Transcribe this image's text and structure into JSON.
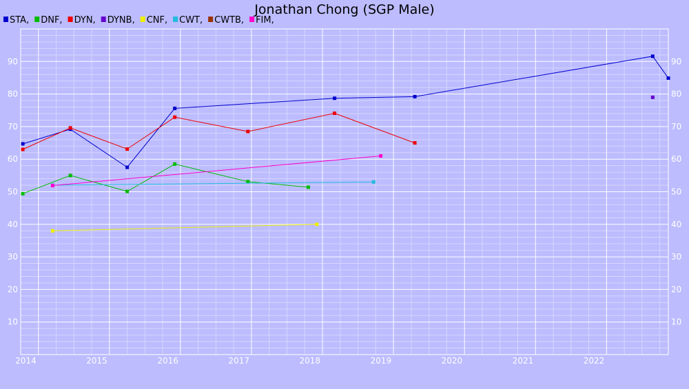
{
  "chart_data": {
    "type": "line",
    "title": "Jonathan Chong (SGP Male)",
    "xlabel": "",
    "ylabel": "",
    "xlim": [
      2013.75,
      2022.87
    ],
    "ylim": [
      0,
      100
    ],
    "x_ticks": [
      "2014",
      "2015",
      "2016",
      "2017",
      "2018",
      "2019",
      "2020",
      "2021",
      "2022"
    ],
    "y_ticks": [
      "10",
      "20",
      "30",
      "40",
      "50",
      "60",
      "70",
      "80",
      "90"
    ],
    "grid": true,
    "legend_position": "top-left",
    "series": [
      {
        "name": "STA,",
        "color": "#0000cc",
        "points": [
          [
            2013.78,
            64.7
          ],
          [
            2014.45,
            69.2
          ],
          [
            2015.25,
            57.5
          ],
          [
            2015.92,
            75.6
          ],
          [
            2018.17,
            78.7
          ],
          [
            2019.3,
            79.2
          ],
          [
            2022.65,
            91.6
          ],
          [
            2022.87,
            84.9
          ]
        ]
      },
      {
        "name": "DNF,",
        "color": "#00bb00",
        "points": [
          [
            2013.78,
            49.4
          ],
          [
            2014.45,
            55.0
          ],
          [
            2015.25,
            50.1
          ],
          [
            2015.92,
            58.5
          ],
          [
            2016.95,
            53.1
          ],
          [
            2017.8,
            51.4
          ]
        ]
      },
      {
        "name": "DYN,",
        "color": "#ee0000",
        "points": [
          [
            2013.78,
            63.0
          ],
          [
            2014.45,
            69.6
          ],
          [
            2015.25,
            63.1
          ],
          [
            2015.92,
            72.9
          ],
          [
            2016.95,
            68.5
          ],
          [
            2018.17,
            74.1
          ],
          [
            2019.3,
            65.0
          ]
        ]
      },
      {
        "name": "DYNB,",
        "color": "#6600cc",
        "points": [
          [
            2022.65,
            79.0
          ]
        ]
      },
      {
        "name": "CNF,",
        "color": "#eeee00",
        "points": [
          [
            2014.2,
            38.0
          ],
          [
            2017.92,
            40.0
          ]
        ]
      },
      {
        "name": "CWT,",
        "color": "#22bbdd",
        "points": [
          [
            2014.2,
            52.0
          ],
          [
            2018.72,
            53.0
          ]
        ]
      },
      {
        "name": "CWTB,",
        "color": "#993300",
        "points": []
      },
      {
        "name": "FIM,",
        "color": "#ff00cc",
        "points": [
          [
            2014.2,
            51.9
          ],
          [
            2018.82,
            61.0
          ]
        ]
      }
    ]
  }
}
